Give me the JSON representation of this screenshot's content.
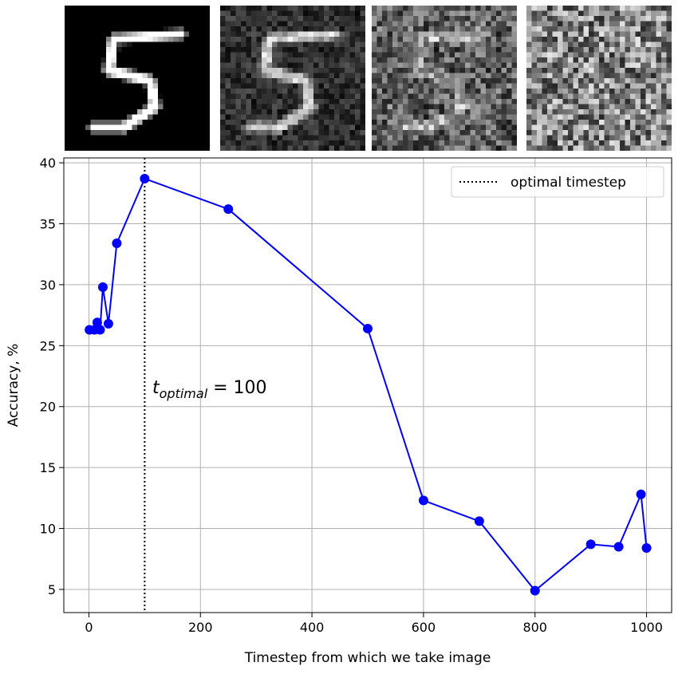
{
  "thumbnails": [
    {
      "name": "clean-digit",
      "noise_level": 0.0
    },
    {
      "name": "light-noise-digit",
      "noise_level": 0.35
    },
    {
      "name": "heavy-noise-digit",
      "noise_level": 0.7
    },
    {
      "name": "pure-noise",
      "noise_level": 1.0
    }
  ],
  "chart_data": {
    "type": "line",
    "xlabel": "Timestep from which we take image",
    "ylabel": "Accuracy, %",
    "xlim": [
      -45,
      1045
    ],
    "ylim": [
      3.1,
      40.4
    ],
    "xticks": [
      0,
      200,
      400,
      600,
      800,
      1000
    ],
    "yticks": [
      5,
      10,
      15,
      20,
      25,
      30,
      35,
      40
    ],
    "grid": true,
    "series": [
      {
        "color": "#0000ff",
        "marker": "circle",
        "x": [
          1,
          10,
          15,
          20,
          25,
          35,
          50,
          100,
          250,
          500,
          600,
          700,
          800,
          900,
          950,
          990,
          1000
        ],
        "y": [
          26.3,
          26.3,
          26.9,
          26.3,
          29.8,
          26.8,
          33.4,
          38.7,
          36.2,
          26.4,
          12.3,
          10.6,
          4.9,
          8.7,
          8.5,
          12.8,
          8.4
        ]
      }
    ],
    "vline": {
      "x": 100,
      "style": "dotted",
      "color": "#000000"
    },
    "legend": {
      "label": "optimal timestep",
      "position": "top-right"
    },
    "annotation": {
      "base": "t",
      "subscript": "optimal",
      "text": " = 100"
    }
  }
}
